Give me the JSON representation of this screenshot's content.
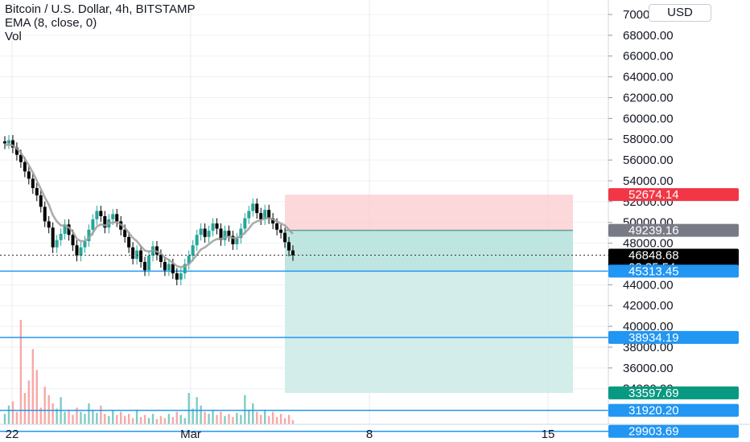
{
  "header": {
    "symbol_line": "Bitcoin / U.S. Dollar, 4h, BITSTAMP",
    "indicator_line": "EMA (8, close, 0)",
    "volume_line": "Vol"
  },
  "currency_button": "USD",
  "colors": {
    "up": "#26a69a",
    "down": "#000000",
    "ema": "#9e9e9e",
    "stop_zone": "#fccbcd",
    "target_zone": "#b2dfdb",
    "target_zone_light": "#d1ece9",
    "level_line": "#2196f3",
    "stop_label": "#f23645",
    "entry_label": "#787b86",
    "target_label": "#089981",
    "last_price_label": "#000000",
    "vol_up": "#80cbc4",
    "vol_down": "#f7a9a7"
  },
  "chart_data": {
    "type": "candlestick",
    "title": "Bitcoin / U.S. Dollar, 4h, BITSTAMP",
    "currency": "USD",
    "x_tick_labels": [
      "22",
      "Mar",
      "8",
      "15"
    ],
    "y_ticks": [
      34000,
      36000,
      38000,
      40000,
      42000,
      44000,
      48000,
      50000,
      52000,
      54000,
      56000,
      58000,
      60000,
      62000,
      64000,
      66000,
      68000,
      70000
    ],
    "y_tick_labels": [
      "34000.00",
      "36000.00",
      "38000.00",
      "40000.00",
      "42000.00",
      "44000.00",
      "48000.00",
      "50000.00",
      "52000.00",
      "54000.00",
      "56000.00",
      "58000.00",
      "60000.00",
      "62000.00",
      "64000.00",
      "66000.00",
      "68000.00",
      "70000.00"
    ],
    "ylim": [
      29500,
      70200
    ],
    "ohlc_close": [
      57600,
      57900,
      57200,
      56500,
      55800,
      54900,
      54200,
      53300,
      52600,
      51500,
      50100,
      49500,
      47600,
      48300,
      48900,
      49800,
      48800,
      47800,
      46800,
      47600,
      48200,
      49300,
      50300,
      51100,
      50600,
      49500,
      50300,
      50800,
      50100,
      49300,
      48600,
      47600,
      46500,
      47300,
      46200,
      45400,
      46800,
      47700,
      46900,
      46200,
      45400,
      46000,
      45100,
      44500,
      45100,
      46000,
      46800,
      47800,
      48800,
      49400,
      48600,
      49200,
      49900,
      49400,
      48300,
      49200,
      48700,
      47900,
      48500,
      49400,
      50400,
      51100,
      51800,
      50900,
      50300,
      51200,
      50400,
      49900,
      49300,
      49000,
      48100,
      47300,
      46849
    ],
    "ema": [
      57400,
      57500,
      57400,
      57100,
      56700,
      56100,
      55500,
      54800,
      54000,
      53200,
      52400,
      51700,
      50700,
      50100,
      49700,
      49700,
      49500,
      49100,
      48400,
      48200,
      48200,
      48500,
      49000,
      49600,
      49800,
      49700,
      49900,
      50000,
      50000,
      49800,
      49500,
      49000,
      48500,
      48200,
      47700,
      47300,
      47200,
      47300,
      47200,
      47000,
      46600,
      46400,
      46100,
      45800,
      45700,
      45800,
      46000,
      46400,
      46900,
      47400,
      47600,
      47900,
      48200,
      48400,
      48400,
      48600,
      48600,
      48500,
      48500,
      48700,
      49000,
      49400,
      49900,
      50100,
      50200,
      50400,
      50400,
      50300,
      50100,
      49900,
      49700,
      49300,
      48900
    ],
    "volume": [
      0.1,
      0.18,
      0.22,
      0.12,
      1.0,
      0.3,
      0.42,
      0.72,
      0.52,
      0.16,
      0.36,
      0.28,
      0.2,
      0.15,
      0.26,
      0.12,
      0.14,
      0.09,
      0.16,
      0.12,
      0.1,
      0.2,
      0.14,
      0.11,
      0.18,
      0.1,
      0.08,
      0.13,
      0.09,
      0.12,
      0.08,
      0.1,
      0.06,
      0.14,
      0.07,
      0.09,
      0.06,
      0.1,
      0.05,
      0.08,
      0.06,
      0.1,
      0.07,
      0.12,
      0.09,
      0.06,
      0.3,
      0.15,
      0.26,
      0.18,
      0.12,
      0.1,
      0.14,
      0.09,
      0.12,
      0.08,
      0.1,
      0.07,
      0.11,
      0.09,
      0.28,
      0.14,
      0.2,
      0.12,
      0.09,
      0.14,
      0.08,
      0.12,
      0.07,
      0.1,
      0.06,
      0.09,
      0.04
    ],
    "levels": [
      {
        "value": 45313.45,
        "label": "45313.45",
        "kind": "support"
      },
      {
        "value": 38934.19,
        "label": "38934.19",
        "kind": "support"
      },
      {
        "value": 31920.2,
        "label": "31920.20",
        "kind": "support"
      },
      {
        "value": 29903.69,
        "label": "29903.69",
        "kind": "support"
      }
    ],
    "position": {
      "type": "short",
      "stop": 52674.14,
      "stop_label": "52674.14",
      "entry": 49239.16,
      "entry_label": "49239.16",
      "target": 33597.69,
      "target_label": "33597.69"
    },
    "last_price": {
      "value": 46848.68,
      "label": "46848.68",
      "countdown": "03:35:54"
    },
    "grid": true
  }
}
